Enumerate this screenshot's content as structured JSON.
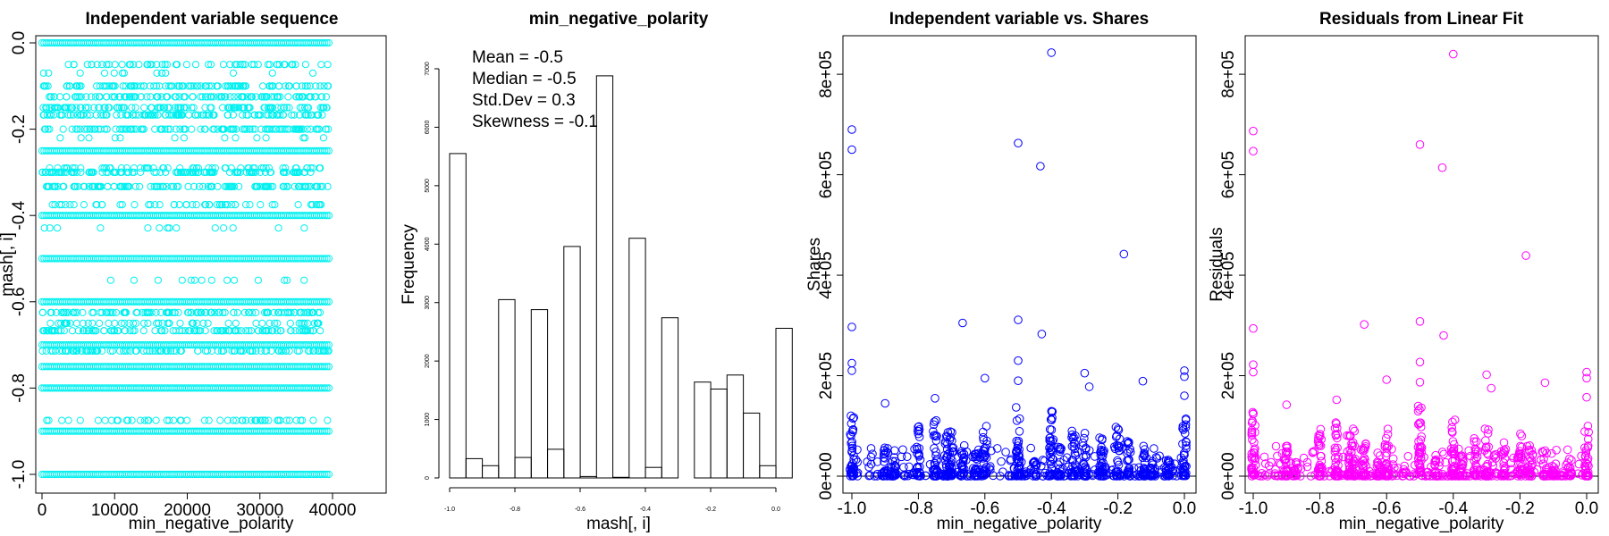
{
  "chart_data": [
    {
      "type": "scatter",
      "title": "Independent variable sequence",
      "xlabel": "min_negative_polarity",
      "ylabel": "mash[, i]",
      "xlim": [
        0,
        40000
      ],
      "ylim": [
        -1.0,
        0.0
      ],
      "xticks": [
        "0",
        "10000",
        "20000",
        "30000",
        "40000"
      ],
      "yticks": [
        "0.0",
        "-0.2",
        "-0.4",
        "-0.6",
        "-0.8",
        "-1.0"
      ],
      "color": "#00f0f0",
      "levels": [
        {
          "y": 0.0,
          "density": "solid"
        },
        {
          "y": -0.05,
          "density": "medium"
        },
        {
          "y": -0.07,
          "density": "sparse"
        },
        {
          "y": -0.1,
          "density": "dense"
        },
        {
          "y": -0.125,
          "density": "dense"
        },
        {
          "y": -0.15,
          "density": "dense"
        },
        {
          "y": -0.167,
          "density": "dense"
        },
        {
          "y": -0.2,
          "density": "dense"
        },
        {
          "y": -0.22,
          "density": "sparse"
        },
        {
          "y": -0.25,
          "density": "solid"
        },
        {
          "y": -0.29,
          "density": "medium"
        },
        {
          "y": -0.3,
          "density": "dense"
        },
        {
          "y": -0.333,
          "density": "dense"
        },
        {
          "y": -0.375,
          "density": "medium"
        },
        {
          "y": -0.4,
          "density": "solid"
        },
        {
          "y": -0.429,
          "density": "sparse"
        },
        {
          "y": -0.5,
          "density": "solid"
        },
        {
          "y": -0.55,
          "density": "sparse"
        },
        {
          "y": -0.6,
          "density": "solid"
        },
        {
          "y": -0.625,
          "density": "dense"
        },
        {
          "y": -0.65,
          "density": "medium"
        },
        {
          "y": -0.667,
          "density": "dense"
        },
        {
          "y": -0.7,
          "density": "solid"
        },
        {
          "y": -0.714,
          "density": "dense"
        },
        {
          "y": -0.75,
          "density": "solid"
        },
        {
          "y": -0.8,
          "density": "solid"
        },
        {
          "y": -0.875,
          "density": "medium"
        },
        {
          "y": -0.9,
          "density": "solid"
        },
        {
          "y": -1.0,
          "density": "solid"
        }
      ]
    },
    {
      "type": "bar",
      "title": "min_negative_polarity",
      "xlabel": "mash[, i]",
      "ylabel": "Frequency",
      "xlim": [
        -1.0,
        0.0
      ],
      "ylim": [
        0,
        7000
      ],
      "xticks": [
        "-1.0",
        "-0.8",
        "-0.6",
        "-0.4",
        "-0.2",
        "0.0"
      ],
      "yticks": [
        "0",
        "1000",
        "2000",
        "3000",
        "4000",
        "5000",
        "6000",
        "7000"
      ],
      "bins": [
        {
          "from": -1.0,
          "to": -0.95,
          "count": 5550
        },
        {
          "from": -0.95,
          "to": -0.9,
          "count": 330
        },
        {
          "from": -0.9,
          "to": -0.85,
          "count": 210
        },
        {
          "from": -0.85,
          "to": -0.8,
          "count": 3050
        },
        {
          "from": -0.8,
          "to": -0.75,
          "count": 350
        },
        {
          "from": -0.75,
          "to": -0.7,
          "count": 2880
        },
        {
          "from": -0.7,
          "to": -0.65,
          "count": 490
        },
        {
          "from": -0.65,
          "to": -0.6,
          "count": 3960
        },
        {
          "from": -0.6,
          "to": -0.55,
          "count": 25
        },
        {
          "from": -0.55,
          "to": -0.5,
          "count": 6880
        },
        {
          "from": -0.5,
          "to": -0.45,
          "count": 10
        },
        {
          "from": -0.45,
          "to": -0.4,
          "count": 4100
        },
        {
          "from": -0.4,
          "to": -0.35,
          "count": 180
        },
        {
          "from": -0.35,
          "to": -0.3,
          "count": 2740
        },
        {
          "from": -0.3,
          "to": -0.25,
          "count": 0
        },
        {
          "from": -0.25,
          "to": -0.2,
          "count": 1640
        },
        {
          "from": -0.2,
          "to": -0.15,
          "count": 1520
        },
        {
          "from": -0.15,
          "to": -0.1,
          "count": 1760
        },
        {
          "from": -0.1,
          "to": -0.05,
          "count": 1110
        },
        {
          "from": -0.05,
          "to": 0.0,
          "count": 210
        },
        {
          "from": 0.0,
          "to": 0.05,
          "count": 2560
        }
      ],
      "annotations": [
        "Mean = -0.5",
        "Median = -0.5",
        "Std.Dev = 0.3",
        "Skewness = -0.1"
      ]
    },
    {
      "type": "scatter",
      "title": "Independent variable vs. Shares",
      "xlabel": "min_negative_polarity",
      "ylabel": "Shares",
      "xlim": [
        -1.0,
        0.0
      ],
      "ylim": [
        0,
        850000
      ],
      "xticks": [
        "-1.0",
        "-0.8",
        "-0.6",
        "-0.4",
        "-0.2",
        "0.0"
      ],
      "yticks": [
        "0e+00",
        "2e+05",
        "4e+05",
        "6e+05",
        "8e+05"
      ],
      "color": "#0000ff",
      "points": [
        [
          -1.0,
          690000
        ],
        [
          -1.0,
          650000
        ],
        [
          -1.0,
          297000
        ],
        [
          -1.0,
          225000
        ],
        [
          -1.0,
          210000
        ],
        [
          -0.667,
          305000
        ],
        [
          -0.5,
          663000
        ],
        [
          -0.5,
          311000
        ],
        [
          -0.5,
          230000
        ],
        [
          -0.5,
          190000
        ],
        [
          -0.433,
          617000
        ],
        [
          -0.429,
          283000
        ],
        [
          -0.4,
          843000
        ],
        [
          -0.6,
          195000
        ],
        [
          -0.75,
          155000
        ],
        [
          -0.9,
          145000
        ],
        [
          -0.3,
          205000
        ],
        [
          -0.286,
          178000
        ],
        [
          -0.182,
          442000
        ],
        [
          -0.125,
          189000
        ],
        [
          0.0,
          210000
        ],
        [
          0.0,
          198000
        ],
        [
          0.0,
          160000
        ]
      ],
      "dense_bands": [
        {
          "x": -1.0,
          "max": 145000
        },
        {
          "x": -0.9,
          "max": 70000
        },
        {
          "x": -0.875,
          "max": 40000
        },
        {
          "x": -0.8,
          "max": 100000
        },
        {
          "x": -0.75,
          "max": 120000
        },
        {
          "x": -0.714,
          "max": 90000
        },
        {
          "x": -0.7,
          "max": 100000
        },
        {
          "x": -0.667,
          "max": 70000
        },
        {
          "x": -0.625,
          "max": 60000
        },
        {
          "x": -0.6,
          "max": 100000
        },
        {
          "x": -0.5,
          "max": 150000
        },
        {
          "x": -0.45,
          "max": 40000
        },
        {
          "x": -0.4,
          "max": 130000
        },
        {
          "x": -0.375,
          "max": 60000
        },
        {
          "x": -0.333,
          "max": 90000
        },
        {
          "x": -0.3,
          "max": 100000
        },
        {
          "x": -0.25,
          "max": 80000
        },
        {
          "x": -0.2,
          "max": 100000
        },
        {
          "x": -0.167,
          "max": 70000
        },
        {
          "x": -0.125,
          "max": 60000
        },
        {
          "x": -0.1,
          "max": 50000
        },
        {
          "x": -0.05,
          "max": 40000
        },
        {
          "x": 0.0,
          "max": 120000
        }
      ],
      "hline": 0
    },
    {
      "type": "scatter",
      "title": "Residuals from Linear Fit",
      "xlabel": "min_negative_polarity",
      "ylabel": "Residuals",
      "xlim": [
        -1.0,
        0.0
      ],
      "ylim": [
        0,
        850000
      ],
      "xticks": [
        "-1.0",
        "-0.8",
        "-0.6",
        "-0.4",
        "-0.2",
        "0.0"
      ],
      "yticks": [
        "0e+00",
        "2e+05",
        "4e+05",
        "6e+05",
        "8e+05"
      ],
      "color": "#ff00ff",
      "points": [
        [
          -1.0,
          687000
        ],
        [
          -1.0,
          647000
        ],
        [
          -1.0,
          294000
        ],
        [
          -1.0,
          222000
        ],
        [
          -1.0,
          207000
        ],
        [
          -0.667,
          302000
        ],
        [
          -0.5,
          660000
        ],
        [
          -0.5,
          308000
        ],
        [
          -0.5,
          227000
        ],
        [
          -0.5,
          187000
        ],
        [
          -0.433,
          614000
        ],
        [
          -0.429,
          280000
        ],
        [
          -0.4,
          840000
        ],
        [
          -0.6,
          192000
        ],
        [
          -0.75,
          152000
        ],
        [
          -0.9,
          142000
        ],
        [
          -0.3,
          202000
        ],
        [
          -0.286,
          175000
        ],
        [
          -0.182,
          439000
        ],
        [
          -0.125,
          186000
        ],
        [
          0.0,
          207000
        ],
        [
          0.0,
          195000
        ],
        [
          0.0,
          157000
        ]
      ],
      "dense_bands": [
        {
          "x": -1.0,
          "max": 140000
        },
        {
          "x": -0.9,
          "max": 65000
        },
        {
          "x": -0.875,
          "max": 35000
        },
        {
          "x": -0.8,
          "max": 95000
        },
        {
          "x": -0.75,
          "max": 115000
        },
        {
          "x": -0.714,
          "max": 85000
        },
        {
          "x": -0.7,
          "max": 95000
        },
        {
          "x": -0.667,
          "max": 65000
        },
        {
          "x": -0.625,
          "max": 55000
        },
        {
          "x": -0.6,
          "max": 95000
        },
        {
          "x": -0.5,
          "max": 145000
        },
        {
          "x": -0.45,
          "max": 35000
        },
        {
          "x": -0.4,
          "max": 125000
        },
        {
          "x": -0.375,
          "max": 55000
        },
        {
          "x": -0.333,
          "max": 85000
        },
        {
          "x": -0.3,
          "max": 95000
        },
        {
          "x": -0.25,
          "max": 75000
        },
        {
          "x": -0.2,
          "max": 95000
        },
        {
          "x": -0.167,
          "max": 65000
        },
        {
          "x": -0.125,
          "max": 55000
        },
        {
          "x": -0.1,
          "max": 45000
        },
        {
          "x": -0.05,
          "max": 35000
        },
        {
          "x": 0.0,
          "max": 115000
        }
      ],
      "hline": 0
    }
  ]
}
